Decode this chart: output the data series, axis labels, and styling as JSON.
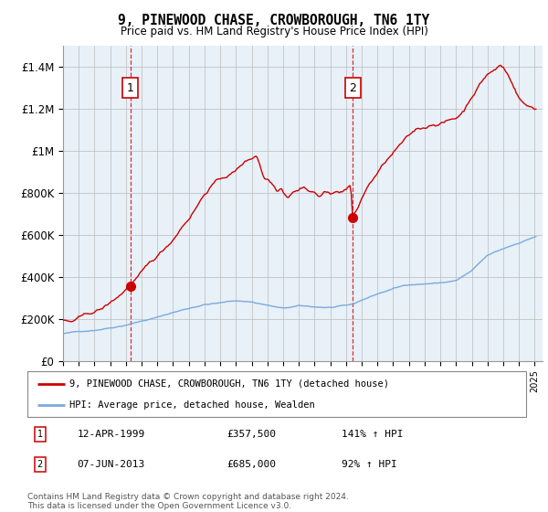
{
  "title": "9, PINEWOOD CHASE, CROWBOROUGH, TN6 1TY",
  "subtitle": "Price paid vs. HM Land Registry's House Price Index (HPI)",
  "plot_bg_color": "#e8f0f8",
  "red_line_color": "#cc0000",
  "blue_line_color": "#7aaadd",
  "legend_label_red": "9, PINEWOOD CHASE, CROWBOROUGH, TN6 1TY (detached house)",
  "legend_label_blue": "HPI: Average price, detached house, Wealden",
  "sale1_date": "12-APR-1999",
  "sale1_price": 357500,
  "sale1_hpi_pct": "141% ↑ HPI",
  "sale2_date": "07-JUN-2013",
  "sale2_price": 685000,
  "sale2_hpi_pct": "92% ↑ HPI",
  "footnote": "Contains HM Land Registry data © Crown copyright and database right 2024.\nThis data is licensed under the Open Government Licence v3.0.",
  "ylim": [
    0,
    1500000
  ],
  "yticks": [
    0,
    200000,
    400000,
    600000,
    800000,
    1000000,
    1200000,
    1400000
  ],
  "ytick_labels": [
    "£0",
    "£200K",
    "£400K",
    "£600K",
    "£800K",
    "£1M",
    "£1.2M",
    "£1.4M"
  ],
  "sale1_year": 1999.28,
  "sale2_year": 2013.44,
  "xlim_left": 1995.0,
  "xlim_right": 2025.5
}
